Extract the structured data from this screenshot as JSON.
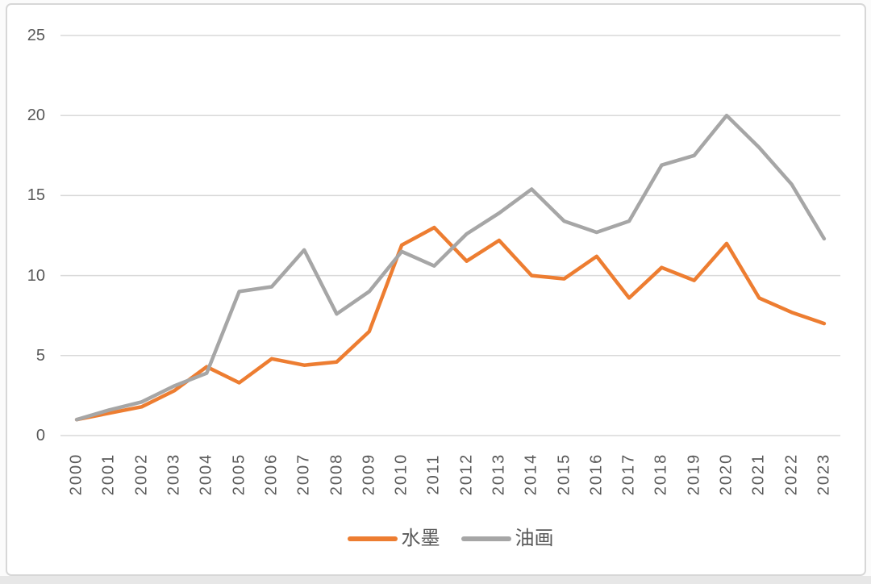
{
  "chart_data": {
    "type": "line",
    "categories": [
      "2000",
      "2001",
      "2002",
      "2003",
      "2004",
      "2005",
      "2006",
      "2007",
      "2008",
      "2009",
      "2010",
      "2011",
      "2012",
      "2013",
      "2014",
      "2015",
      "2016",
      "2017",
      "2018",
      "2019",
      "2020",
      "2021",
      "2022",
      "2023"
    ],
    "series": [
      {
        "name": "水墨",
        "color": "#ED7D31",
        "values": [
          1.0,
          1.4,
          1.8,
          2.8,
          4.3,
          3.3,
          4.8,
          4.4,
          4.6,
          6.5,
          11.9,
          13.0,
          10.9,
          12.2,
          10.0,
          9.8,
          11.2,
          8.6,
          10.5,
          9.7,
          12.0,
          8.6,
          7.7,
          7.0
        ]
      },
      {
        "name": "油画",
        "color": "#A6A6A6",
        "values": [
          1.0,
          1.6,
          2.1,
          3.1,
          3.9,
          9.0,
          9.3,
          11.6,
          7.6,
          9.0,
          11.5,
          10.6,
          12.6,
          13.9,
          15.4,
          13.4,
          12.7,
          13.4,
          16.9,
          17.5,
          20.0,
          18.0,
          15.7,
          12.3
        ]
      }
    ],
    "xlabel": "",
    "ylabel": "",
    "ylim": [
      0,
      25
    ],
    "yticks": [
      0,
      5,
      10,
      15,
      20,
      25
    ],
    "grid": true,
    "legend_position": "bottom",
    "gridline_color": "#d9d9d9",
    "axis_label_color": "#595959",
    "frame_border_color": "#d7d7d7",
    "background_color": "#ffffff"
  }
}
